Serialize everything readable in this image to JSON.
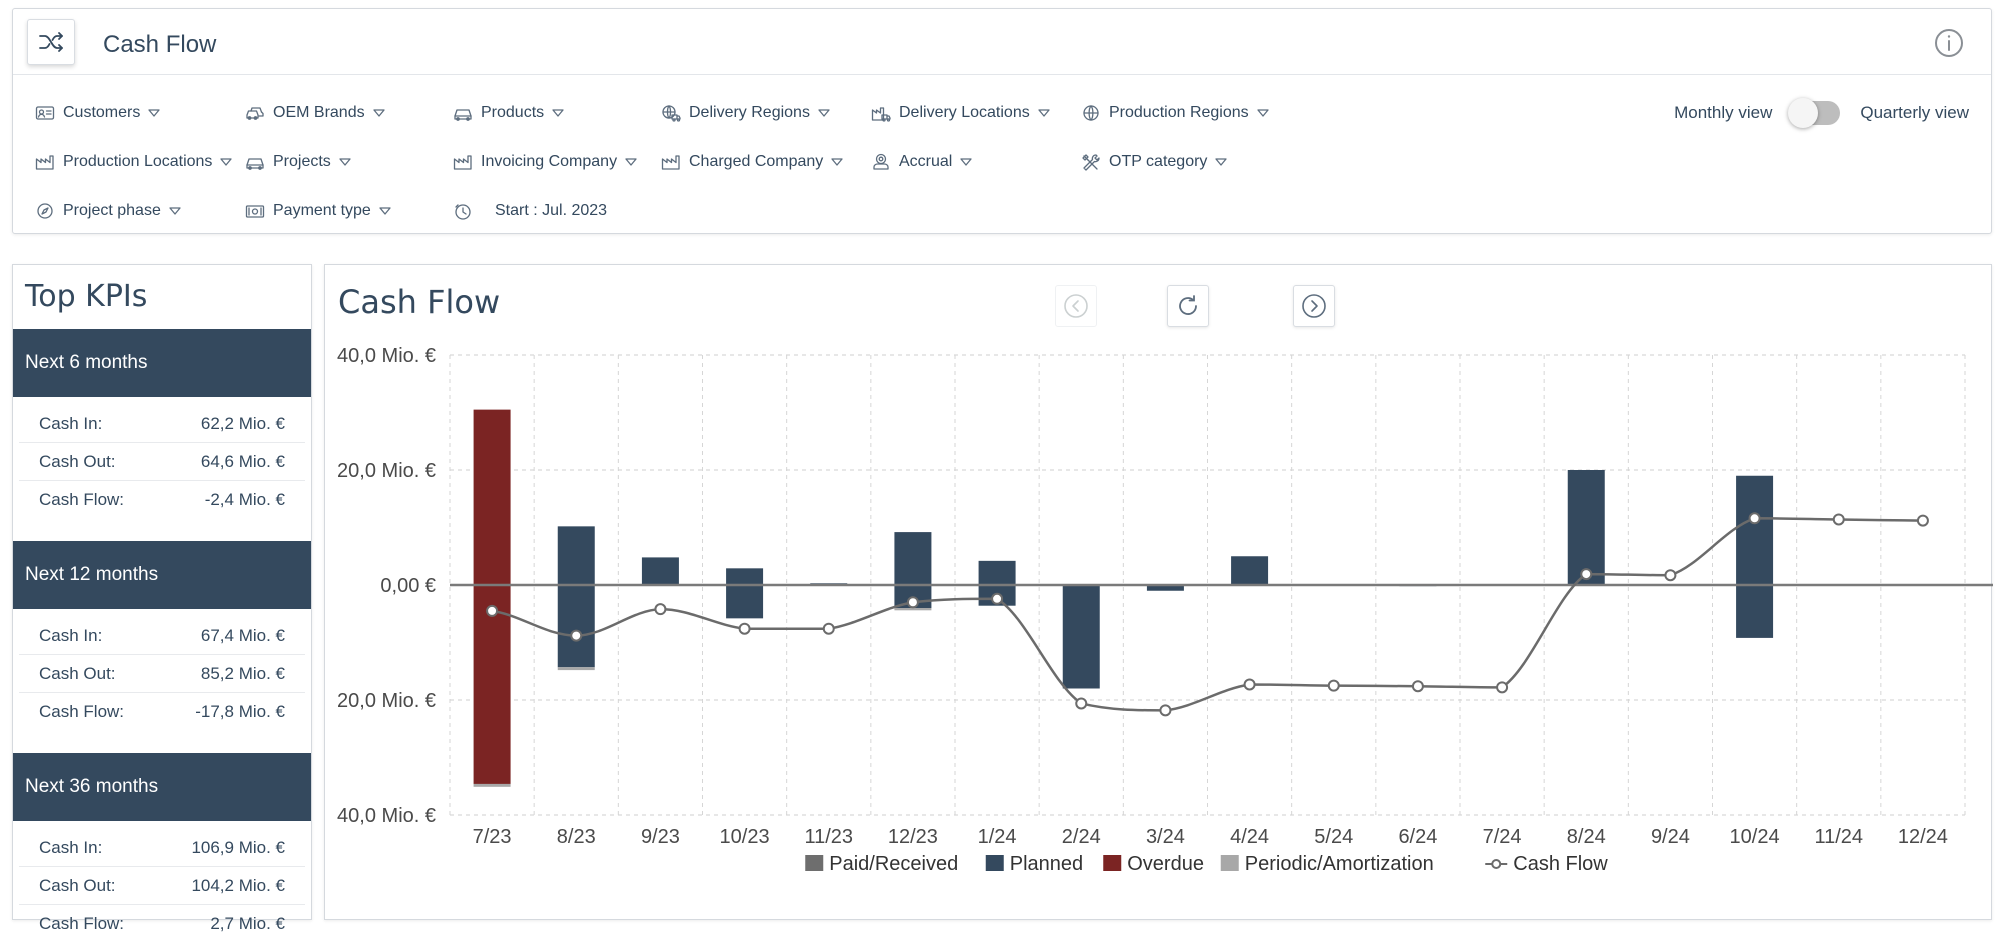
{
  "header": {
    "title": "Cash Flow",
    "app_icon": "shuffle-icon",
    "info_icon": "info-icon"
  },
  "filters": [
    {
      "id": "customers",
      "label": "Customers",
      "icon": "id-card-icon"
    },
    {
      "id": "oem-brands",
      "label": "OEM Brands",
      "icon": "cars-icon"
    },
    {
      "id": "products",
      "label": "Products",
      "icon": "car-icon"
    },
    {
      "id": "delivery-regions",
      "label": "Delivery Regions",
      "icon": "globe-truck-icon"
    },
    {
      "id": "delivery-locations",
      "label": "Delivery Locations",
      "icon": "factory-truck-icon"
    },
    {
      "id": "production-regions",
      "label": "Production Regions",
      "icon": "globe-icon"
    },
    {
      "id": "production-locations",
      "label": "Production Locations",
      "icon": "factory-icon"
    },
    {
      "id": "projects",
      "label": "Projects",
      "icon": "car-icon"
    },
    {
      "id": "invoicing-company",
      "label": "Invoicing Company",
      "icon": "factory-icon"
    },
    {
      "id": "charged-company",
      "label": "Charged Company",
      "icon": "factory-icon"
    },
    {
      "id": "accrual",
      "label": "Accrual",
      "icon": "user-badge-icon"
    },
    {
      "id": "otp-category",
      "label": "OTP category",
      "icon": "tools-icon"
    },
    {
      "id": "project-phase",
      "label": "Project phase",
      "icon": "compass-icon"
    },
    {
      "id": "payment-type",
      "label": "Payment type",
      "icon": "money-icon"
    },
    {
      "id": "start",
      "label": "Start : Jul. 2023",
      "icon": "clock-icon"
    }
  ],
  "view_toggle": {
    "left_label": "Monthly view",
    "right_label": "Quarterly view",
    "selected": "Monthly view"
  },
  "kpis": {
    "title": "Top KPIs",
    "groups": [
      {
        "header": "Next 6 months",
        "rows": [
          {
            "label": "Cash In:",
            "value": "62,2 Mio. €"
          },
          {
            "label": "Cash Out:",
            "value": "64,6 Mio. €"
          },
          {
            "label": "Cash Flow:",
            "value": "-2,4 Mio. €"
          }
        ]
      },
      {
        "header": "Next 12 months",
        "rows": [
          {
            "label": "Cash In:",
            "value": "67,4 Mio. €"
          },
          {
            "label": "Cash Out:",
            "value": "85,2 Mio. €"
          },
          {
            "label": "Cash Flow:",
            "value": "-17,8 Mio. €"
          }
        ]
      },
      {
        "header": "Next 36 months",
        "rows": [
          {
            "label": "Cash In:",
            "value": "106,9 Mio. €"
          },
          {
            "label": "Cash Out:",
            "value": "104,2 Mio. €"
          },
          {
            "label": "Cash Flow:",
            "value": "2,7 Mio. €"
          }
        ]
      }
    ]
  },
  "chart_panel": {
    "title": "Cash Flow",
    "nav": {
      "prev_icon": "chevron-left-circle-icon",
      "refresh_icon": "refresh-icon",
      "next_icon": "chevron-right-circle-icon"
    }
  },
  "chart_data": {
    "type": "bar",
    "categories": [
      "7/23",
      "8/23",
      "9/23",
      "10/23",
      "11/23",
      "12/23",
      "1/24",
      "2/24",
      "3/24",
      "4/24",
      "5/24",
      "6/24",
      "7/24",
      "8/24",
      "9/24",
      "10/24",
      "11/24",
      "12/24"
    ],
    "ylim": [
      -40,
      40
    ],
    "ytick_values": [
      40,
      20,
      0,
      -20,
      -40
    ],
    "ytick_labels": [
      "40,0 Mio. €",
      "20,0 Mio. €",
      "0,00 €",
      "20,0 Mio. €",
      "40,0 Mio. €"
    ],
    "grid": true,
    "legend_position": "bottom-center",
    "series": [
      {
        "name": "Paid/Received",
        "kind": "bar",
        "color": "#6e6e6e",
        "positive": [
          0,
          0,
          0,
          0,
          0,
          0,
          0,
          0,
          0,
          0,
          0,
          0,
          0,
          0,
          0,
          0,
          0,
          0
        ],
        "negative": [
          0,
          0,
          0,
          0,
          0,
          0,
          0,
          0,
          0,
          0,
          0,
          0,
          0,
          0,
          0,
          0,
          0,
          0
        ]
      },
      {
        "name": "Planned",
        "kind": "bar",
        "color": "#34495e",
        "positive": [
          0,
          10.2,
          4.8,
          2.9,
          0.3,
          9.2,
          4.2,
          0,
          0,
          5.0,
          0,
          0,
          0,
          20.0,
          0,
          19.0,
          0,
          0
        ],
        "negative": [
          0,
          -14.3,
          0,
          -5.8,
          0,
          -4.0,
          -3.6,
          -18.0,
          -1.0,
          0,
          0,
          -0.2,
          0,
          0,
          0,
          -9.2,
          0,
          0
        ]
      },
      {
        "name": "Overdue",
        "kind": "bar",
        "color": "#7b2423",
        "positive": [
          30.5,
          0,
          0,
          0,
          0,
          0,
          0,
          0,
          0,
          0,
          0,
          0,
          0,
          0,
          0,
          0,
          0,
          0
        ],
        "negative": [
          -34.6,
          0,
          0,
          0,
          0,
          0,
          0,
          0,
          0,
          0,
          0,
          0,
          0,
          0,
          0,
          0,
          0,
          0
        ]
      },
      {
        "name": "Periodic/Amortization",
        "kind": "bar",
        "color": "#a8a8a8",
        "positive": [
          0,
          0,
          0,
          0,
          0,
          0,
          0,
          0,
          0,
          0,
          0,
          0,
          0,
          0,
          0,
          0,
          0,
          0
        ],
        "negative": [
          -0.5,
          -0.5,
          0,
          0,
          0,
          -0.4,
          0,
          0,
          0,
          0,
          0,
          0,
          0,
          0,
          0,
          0,
          0,
          0
        ]
      },
      {
        "name": "Cash Flow",
        "kind": "line",
        "color": "#6b6b6b",
        "values": [
          -4.5,
          -8.8,
          -4.2,
          -7.6,
          -7.6,
          -3.0,
          -2.4,
          -20.6,
          -21.8,
          -17.3,
          -17.5,
          -17.6,
          -17.8,
          1.9,
          1.7,
          11.6,
          11.4,
          11.2
        ]
      }
    ]
  }
}
